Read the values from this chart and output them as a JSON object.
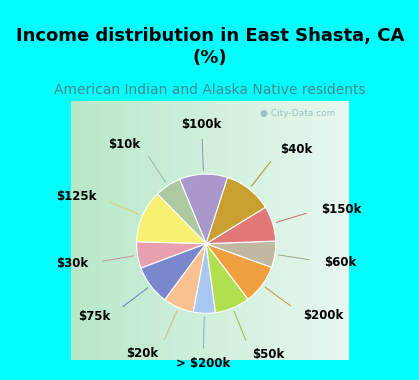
{
  "title": "Income distribution in East Shasta, CA\n(%)",
  "subtitle": "American Indian and Alaska Native residents",
  "labels": [
    "$100k",
    "$10k",
    "$125k",
    "$30k",
    "$75k",
    "$20k",
    "> $200k",
    "$50k",
    "$200k",
    "$60k",
    "$150k",
    "$40k"
  ],
  "values": [
    11,
    6,
    12,
    6,
    9,
    7,
    5,
    8,
    9,
    6,
    8,
    11
  ],
  "colors": [
    "#a898cc",
    "#aec8a0",
    "#f8f070",
    "#e8a0b0",
    "#7888cc",
    "#f8c090",
    "#a8c8f0",
    "#b0e050",
    "#f0a040",
    "#c0b8a0",
    "#e07878",
    "#c8a030"
  ],
  "bg_color": "#00ffff",
  "chart_bg_left": "#b8e8c8",
  "chart_bg_right": "#e8f8f0",
  "label_fontsize": 8.5,
  "title_fontsize": 13,
  "subtitle_fontsize": 10,
  "startangle": 72,
  "line_colors": [
    "#9888bb",
    "#9eb898",
    "#d8d060",
    "#c890a0",
    "#6878bb",
    "#d8b080",
    "#88a8d0",
    "#90c040",
    "#d09030",
    "#a0a888",
    "#c06868",
    "#a89020"
  ]
}
